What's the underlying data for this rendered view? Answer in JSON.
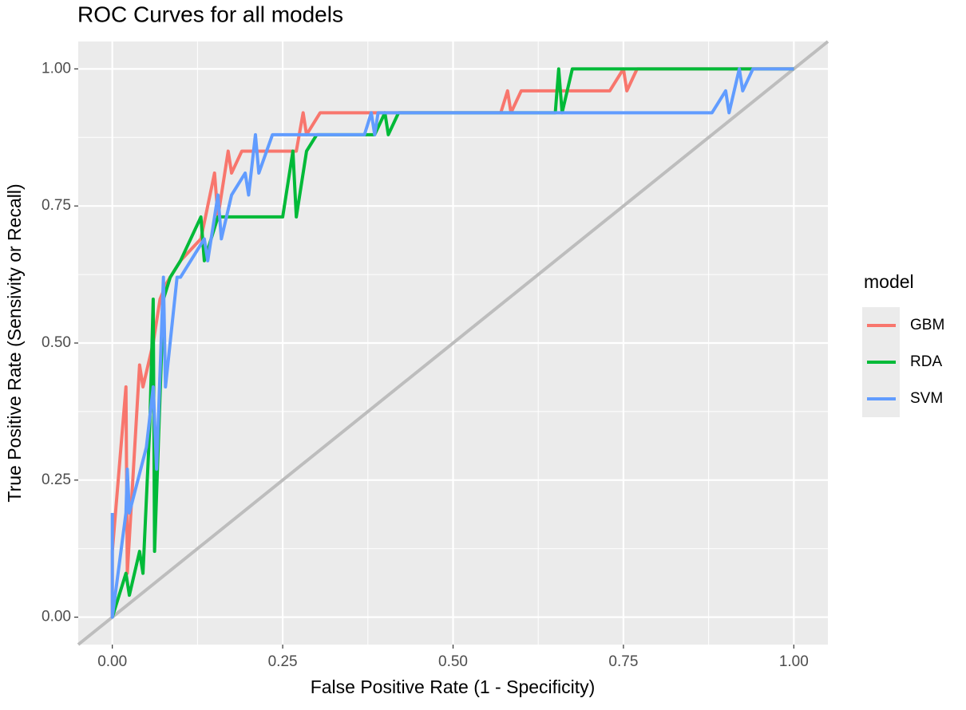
{
  "chart_data": {
    "type": "line",
    "title": "ROC Curves for all models",
    "x_label": "False Positive Rate (1 - Specificity)",
    "y_label": "True Positive Rate (Sensivity or Recall)",
    "legend_title": "model",
    "legend_position": "right",
    "grid": true,
    "xlim": [
      -0.05,
      1.05
    ],
    "ylim": [
      -0.05,
      1.05
    ],
    "xticks": [
      {
        "value": 0,
        "label": "0.00"
      },
      {
        "value": 0.25,
        "label": "0.25"
      },
      {
        "value": 0.5,
        "label": "0.50"
      },
      {
        "value": 0.75,
        "label": "0.75"
      },
      {
        "value": 1,
        "label": "1.00"
      }
    ],
    "yticks": [
      {
        "value": 0,
        "label": "0.00"
      },
      {
        "value": 0.25,
        "label": "0.25"
      },
      {
        "value": 0.5,
        "label": "0.50"
      },
      {
        "value": 0.75,
        "label": "0.75"
      },
      {
        "value": 1,
        "label": "1.00"
      }
    ],
    "series": [
      {
        "name": "GBM",
        "color": "#F8766D",
        "x": [
          0,
          0,
          0.02,
          0.022,
          0.04,
          0.045,
          0.06,
          0.07,
          0.08,
          0.1,
          0.13,
          0.15,
          0.155,
          0.17,
          0.175,
          0.19,
          0.27,
          0.28,
          0.285,
          0.305,
          0.57,
          0.58,
          0.585,
          0.6,
          0.73,
          0.75,
          0.755,
          0.77,
          1
        ],
        "values": [
          0,
          0.12,
          0.42,
          0.08,
          0.46,
          0.42,
          0.5,
          0.58,
          0.61,
          0.65,
          0.69,
          0.81,
          0.73,
          0.85,
          0.81,
          0.85,
          0.85,
          0.92,
          0.88,
          0.92,
          0.92,
          0.96,
          0.92,
          0.96,
          0.96,
          1,
          0.96,
          1,
          1
        ]
      },
      {
        "name": "RDA",
        "color": "#00BA38",
        "x": [
          0,
          0.02,
          0.025,
          0.04,
          0.045,
          0.055,
          0.06,
          0.062,
          0.075,
          0.085,
          0.1,
          0.13,
          0.135,
          0.155,
          0.25,
          0.265,
          0.27,
          0.285,
          0.3,
          0.385,
          0.4,
          0.405,
          0.42,
          0.65,
          0.655,
          0.66,
          0.675,
          1
        ],
        "values": [
          0,
          0.08,
          0.04,
          0.12,
          0.08,
          0.35,
          0.58,
          0.12,
          0.58,
          0.62,
          0.65,
          0.73,
          0.65,
          0.73,
          0.73,
          0.85,
          0.73,
          0.85,
          0.88,
          0.88,
          0.92,
          0.88,
          0.92,
          0.92,
          1,
          0.92,
          1,
          1
        ]
      },
      {
        "name": "SVM",
        "color": "#619CFF",
        "x": [
          0,
          0,
          0.02,
          0.022,
          0.025,
          0.05,
          0.06,
          0.065,
          0.075,
          0.078,
          0.095,
          0.1,
          0.135,
          0.14,
          0.155,
          0.16,
          0.175,
          0.195,
          0.2,
          0.21,
          0.215,
          0.235,
          0.37,
          0.38,
          0.385,
          0.39,
          0.88,
          0.9,
          0.905,
          0.92,
          0.925,
          0.94,
          1
        ],
        "values": [
          0.19,
          0,
          0.19,
          0.27,
          0.19,
          0.31,
          0.42,
          0.27,
          0.62,
          0.42,
          0.62,
          0.62,
          0.69,
          0.65,
          0.77,
          0.69,
          0.77,
          0.81,
          0.77,
          0.88,
          0.81,
          0.88,
          0.88,
          0.92,
          0.88,
          0.92,
          0.92,
          0.96,
          0.92,
          1,
          0.96,
          1,
          1
        ]
      }
    ]
  }
}
